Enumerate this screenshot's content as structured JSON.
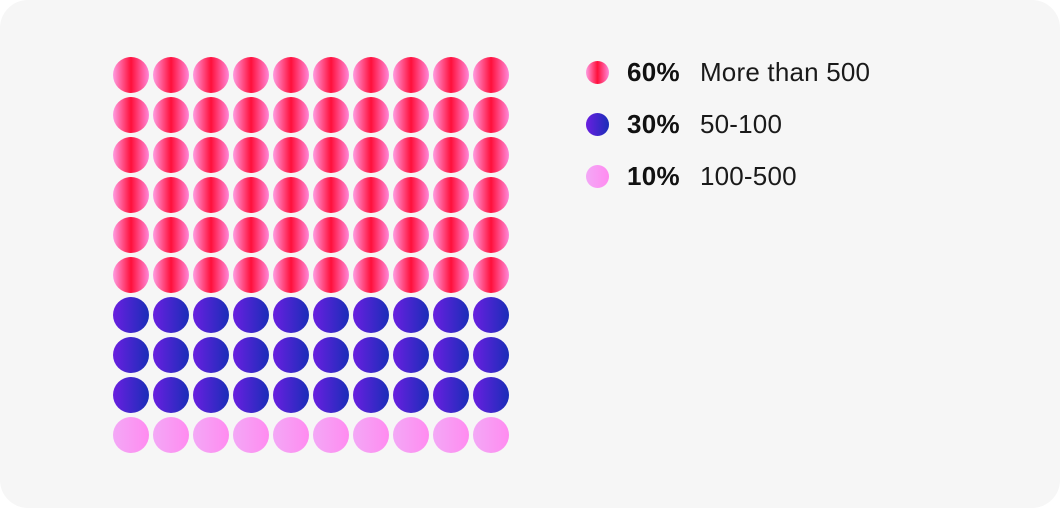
{
  "chart_data": {
    "type": "waffle",
    "total_units": 100,
    "columns": 10,
    "rows": 10,
    "series": [
      {
        "name": "More than 500",
        "percent_label": "60%",
        "value": 60,
        "color_start": "#ff9be2",
        "color_mid": "#ff0f3a",
        "color_end": "#ff87d8"
      },
      {
        "name": "50-100",
        "percent_label": "30%",
        "value": 30,
        "color_start": "#6a1fe0",
        "color_end": "#1a2db8"
      },
      {
        "name": "100-500",
        "percent_label": "10%",
        "value": 10,
        "color_start": "#f3a8f6",
        "color_end": "#ff8bf0"
      }
    ]
  },
  "colors": {
    "card_background": "#f6f6f6",
    "text": "#111111"
  }
}
